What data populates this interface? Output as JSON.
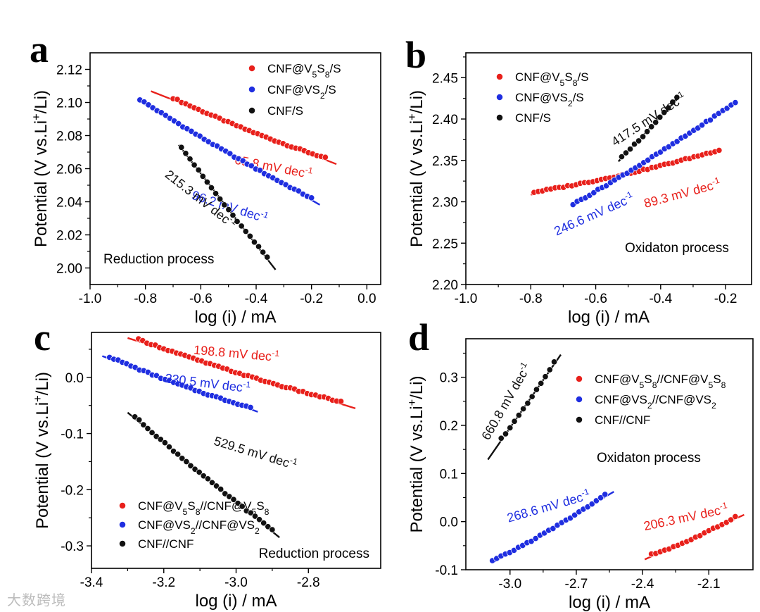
{
  "colors": {
    "red": "#e8201b",
    "blue": "#1f2ee0",
    "black": "#111111"
  },
  "watermark": "大数跨境",
  "chart_data": [
    {
      "panel": "a",
      "type": "scatter",
      "xlabel": "log (i) / mA",
      "ylabel": "Potential (V vs.Li+/Li)",
      "xlim": [
        -1.0,
        0.05
      ],
      "ylim": [
        1.99,
        2.13
      ],
      "xticks": [
        -1.0,
        -0.8,
        -0.6,
        -0.4,
        -0.2,
        0.0
      ],
      "xtick_labels": [
        "-1.0",
        "-0.8",
        "-0.6",
        "-0.4",
        "-0.2",
        "0.0"
      ],
      "yticks": [
        2.0,
        2.02,
        2.04,
        2.06,
        2.08,
        2.1,
        2.12
      ],
      "ytick_labels": [
        "2.00",
        "2.02",
        "2.04",
        "2.06",
        "2.08",
        "2.10",
        "2.12"
      ],
      "process_label": "Reduction process",
      "process_pos": "bottom-left",
      "legend_pos": "top-right",
      "series": [
        {
          "name": "CNF@V5S8/S",
          "color": "red",
          "x_range": [
            -0.7,
            -0.15
          ],
          "fit_x": [
            -0.78,
            -0.11
          ],
          "slope": -0.0658,
          "intercept": 2.0555,
          "annotation": "65.8 mV dec-1",
          "ann_x": -0.34,
          "ann_y": 2.0585,
          "ann_angle": 11
        },
        {
          "name": "CNF@VS2/S",
          "color": "blue",
          "x_range": [
            -0.82,
            -0.2
          ],
          "fit_x": [
            -0.82,
            -0.17
          ],
          "slope": -0.0962,
          "intercept": 2.0218,
          "annotation": "96.2 mV dec-1",
          "ann_x": -0.5,
          "ann_y": 2.0345,
          "ann_angle": 18
        },
        {
          "name": "CNF/S",
          "color": "black",
          "x_range": [
            -0.67,
            -0.36
          ],
          "fit_x": [
            -0.68,
            -0.33
          ],
          "slope": -0.2153,
          "intercept": 1.9279,
          "annotation": "215.3 mV dec-1",
          "ann_x": -0.61,
          "ann_y": 2.0395,
          "ann_angle": 38
        }
      ]
    },
    {
      "panel": "b",
      "type": "scatter",
      "xlabel": "log (i) / mA",
      "ylabel": "Potential (V vs.Li+/Li)",
      "xlim": [
        -1.0,
        -0.12
      ],
      "ylim": [
        2.2,
        2.48
      ],
      "xticks": [
        -1.0,
        -0.8,
        -0.6,
        -0.4,
        -0.2
      ],
      "xtick_labels": [
        "-1.0",
        "-0.8",
        "-0.6",
        "-0.4",
        "-0.2"
      ],
      "yticks": [
        2.2,
        2.25,
        2.3,
        2.35,
        2.4,
        2.45
      ],
      "ytick_labels": [
        "2.20",
        "2.25",
        "2.30",
        "2.35",
        "2.40",
        "2.45"
      ],
      "process_label": "Oxidaton process",
      "process_pos": "bottom-right",
      "legend_pos": "top-left",
      "series": [
        {
          "name": "CNF@V5S8/S",
          "color": "red",
          "x_range": [
            -0.79,
            -0.22
          ],
          "fit_x": [
            -0.8,
            -0.22
          ],
          "slope": 0.0893,
          "intercept": 2.38,
          "annotation": "89.3 mV dec-1",
          "ann_x": -0.33,
          "ann_y": 2.305,
          "ann_angle": -15
        },
        {
          "name": "CNF@VS2/S",
          "color": "blue",
          "x_range": [
            -0.67,
            -0.17
          ],
          "fit_x": [
            -0.67,
            -0.17
          ],
          "slope": 0.2466,
          "intercept": 2.46,
          "annotation": "246.6 mV dec-1",
          "ann_x": -0.6,
          "ann_y": 2.28,
          "ann_angle": -24
        },
        {
          "name": "CNF/S",
          "color": "black",
          "x_range": [
            -0.52,
            -0.35
          ],
          "fit_x": [
            -0.53,
            -0.345
          ],
          "slope": 0.4175,
          "intercept": 2.57,
          "annotation": "417.5 mV dec-1",
          "ann_x": -0.43,
          "ann_y": 2.395,
          "ann_angle": -33
        }
      ]
    },
    {
      "panel": "c",
      "type": "scatter",
      "xlabel": "log (i) / mA",
      "ylabel": "Potential (V vs.Li+/Li)",
      "xlim": [
        -3.4,
        -2.6
      ],
      "ylim": [
        -0.34,
        0.08
      ],
      "xticks": [
        -3.4,
        -3.2,
        -3.0,
        -2.8
      ],
      "xtick_labels": [
        "-3.4",
        "-3.2",
        "-3.0",
        "-2.8"
      ],
      "yticks": [
        0.0,
        -0.1,
        -0.2,
        -0.3
      ],
      "ytick_labels": [
        "0.0",
        "-0.1",
        "-0.2",
        "-0.3"
      ],
      "process_label": "Reduction process",
      "process_pos": "bottom-right",
      "legend_pos": "bottom-left",
      "series": [
        {
          "name": "CNF@V5S8//CNF@V5S8",
          "color": "red",
          "x_range": [
            -3.27,
            -2.71
          ],
          "fit_x": [
            -3.3,
            -2.67
          ],
          "slope": -0.1988,
          "intercept": -0.586,
          "annotation": "198.8 mV dec-1",
          "ann_x": -3.0,
          "ann_y": 0.035,
          "ann_angle": 5
        },
        {
          "name": "CNF@VS2//CNF@VS2",
          "color": "blue",
          "x_range": [
            -3.35,
            -2.96
          ],
          "fit_x": [
            -3.37,
            -2.94
          ],
          "slope": -0.2305,
          "intercept": -0.739,
          "annotation": "230.5 mV dec-1",
          "ann_x": -3.08,
          "ann_y": -0.018,
          "ann_angle": 7
        },
        {
          "name": "CNF//CNF",
          "color": "black",
          "x_range": [
            -3.28,
            -2.9
          ],
          "fit_x": [
            -3.3,
            -2.88
          ],
          "slope": -0.5295,
          "intercept": -1.81,
          "annotation": "529.5 mV dec-1",
          "ann_x": -2.95,
          "ann_y": -0.142,
          "ann_angle": 17
        }
      ]
    },
    {
      "panel": "d",
      "type": "scatter",
      "xlabel": "log (i) / mA",
      "ylabel": "Potential (V vs.Li+/Li)",
      "xlim": [
        -3.2,
        -1.9
      ],
      "ylim": [
        -0.1,
        0.38
      ],
      "xticks": [
        -3.0,
        -2.7,
        -2.4,
        -2.1
      ],
      "xtick_labels": [
        "-3.0",
        "-2.7",
        "-2.4",
        "-2.1"
      ],
      "yticks": [
        -0.1,
        0.0,
        0.1,
        0.2,
        0.3
      ],
      "ytick_labels": [
        "-0.1",
        "0.0",
        "0.1",
        "0.2",
        "0.3"
      ],
      "process_label": "Oxidaton process",
      "process_pos": "middle-right",
      "legend_pos": "top-right",
      "series": [
        {
          "name": "CNF@V5S8//CNF@V5S8",
          "color": "red",
          "x_range": [
            -2.36,
            -1.98
          ],
          "fit_x": [
            -2.39,
            -1.94
          ],
          "slope": 0.2063,
          "intercept": 0.4145,
          "annotation": "206.3 mV dec-1",
          "ann_x": -2.2,
          "ann_y": 0.0,
          "ann_angle": -12
        },
        {
          "name": "CNF@VS2//CNF@VS2",
          "color": "blue",
          "x_range": [
            -3.08,
            -2.57
          ],
          "fit_x": [
            -3.08,
            -2.53
          ],
          "slope": 0.2686,
          "intercept": 0.7417,
          "annotation": "268.6 mV dec-1",
          "ann_x": -2.82,
          "ann_y": 0.023,
          "ann_angle": -16
        },
        {
          "name": "CNF//CNF",
          "color": "black",
          "x_range": [
            -3.04,
            -2.8
          ],
          "fit_x": [
            -3.1,
            -2.77
          ],
          "slope": 0.6608,
          "intercept": 2.1774,
          "annotation": "660.8 mV dec-1",
          "ann_x": -3.0,
          "ann_y": 0.245,
          "ann_angle": -60
        }
      ]
    }
  ]
}
